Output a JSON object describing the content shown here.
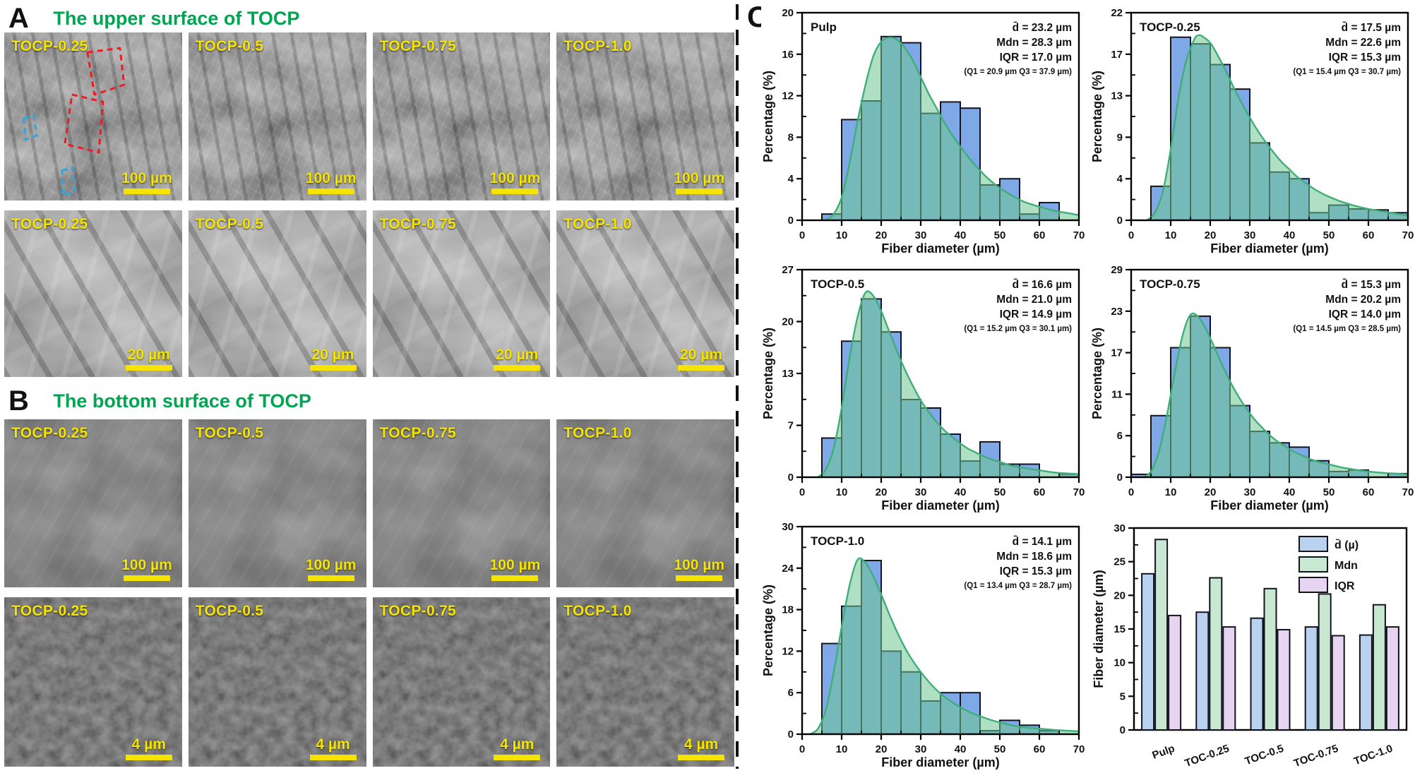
{
  "panels": {
    "a": {
      "letter": "A",
      "title": "The upper surface of TOCP",
      "rows": [
        {
          "scale_label": "100 µm",
          "texture": "texA1",
          "overlay": "ovA1",
          "annotated_first_tile": true,
          "tiles": [
            "TOCP-0.25",
            "TOCP-0.5",
            "TOCP-0.75",
            "TOCP-1.0"
          ]
        },
        {
          "scale_label": "20 µm",
          "texture": "texA2",
          "overlay": "ovA2",
          "annotated_first_tile": false,
          "tiles": [
            "TOCP-0.25",
            "TOCP-0.5",
            "TOCP-0.75",
            "TOCP-1.0"
          ]
        }
      ]
    },
    "b": {
      "letter": "B",
      "title": "The bottom surface of TOCP",
      "rows": [
        {
          "scale_label": "100 µm",
          "texture": "texB1",
          "overlay": "ovB1",
          "annotated_first_tile": false,
          "tiles": [
            "TOCP-0.25",
            "TOCP-0.5",
            "TOCP-0.75",
            "TOCP-1.0"
          ]
        },
        {
          "scale_label": "4 µm",
          "texture": "texB2",
          "overlay": "ovB2",
          "annotated_first_tile": false,
          "tiles": [
            "TOCP-0.25",
            "TOCP-0.5",
            "TOCP-0.75",
            "TOCP-1.0"
          ]
        }
      ]
    },
    "c": {
      "letter": "C"
    }
  },
  "colors": {
    "accent_green_title": "#00a551",
    "sem_label_yellow": "#f5e400",
    "hist_bar_fill": "#7fa8e6",
    "hist_bar_stroke": "#14141e",
    "curve_line": "#3fae7a",
    "curve_fill": "rgba(109,199,145,0.55)",
    "summary_bar_blue": "#b9d2f0",
    "summary_bar_green": "#c8e8d2",
    "summary_bar_purple": "#e6d4f0",
    "annotation_red": "#ed1c24",
    "annotation_blue": "#2aa7e0"
  },
  "chart_data": [
    {
      "type": "bar",
      "subtype": "histogram",
      "label": "Pulp",
      "xlabel": "Fiber diameter (µm)",
      "ylabel": "Percentage (%)",
      "xlim": [
        0,
        70
      ],
      "xticks": [
        0,
        10,
        20,
        30,
        40,
        50,
        60,
        70
      ],
      "ylim": [
        0,
        20
      ],
      "yticks": [
        0,
        4,
        8,
        12,
        16,
        20
      ],
      "bin_width": 5,
      "bin_start": 5,
      "bin_percentages": [
        0.6,
        9.7,
        11.5,
        17.7,
        17.1,
        10.3,
        11.4,
        10.8,
        3.4,
        4.0,
        0.6,
        1.7
      ],
      "fit_curve": [
        [
          6,
          0
        ],
        [
          8,
          0.6
        ],
        [
          10,
          2.2
        ],
        [
          12,
          5.5
        ],
        [
          14,
          9.5
        ],
        [
          16,
          13
        ],
        [
          18,
          15.8
        ],
        [
          20,
          17.2
        ],
        [
          22,
          17.6
        ],
        [
          24,
          17.4
        ],
        [
          26,
          16.6
        ],
        [
          28,
          15.4
        ],
        [
          30,
          13.8
        ],
        [
          32,
          12.2
        ],
        [
          34,
          10.8
        ],
        [
          36,
          9.4
        ],
        [
          38,
          8.2
        ],
        [
          40,
          7.1
        ],
        [
          42,
          6.1
        ],
        [
          44,
          5.2
        ],
        [
          46,
          4.4
        ],
        [
          48,
          3.7
        ],
        [
          50,
          3.1
        ],
        [
          53,
          2.4
        ],
        [
          56,
          1.8
        ],
        [
          60,
          1.3
        ],
        [
          64,
          0.9
        ],
        [
          67,
          0.7
        ],
        [
          70,
          0.5
        ]
      ],
      "stats": {
        "mean": "d̄ = 23.2 µm",
        "median": "Mdn = 28.3 µm",
        "iqr": "IQR = 17.0 µm",
        "quartiles": "(Q1 = 20.9 µm Q3 = 37.9 µm)"
      }
    },
    {
      "type": "bar",
      "subtype": "histogram",
      "label": "TOCP-0.25",
      "xlabel": "Fiber diameter (µm)",
      "ylabel": "Percentage (%)",
      "xlim": [
        0,
        70
      ],
      "xticks": [
        0,
        10,
        20,
        30,
        40,
        50,
        60,
        70
      ],
      "ylim": [
        0,
        22
      ],
      "yticks": [
        0,
        4,
        9,
        13,
        17,
        22
      ],
      "bin_width": 5,
      "bin_start": 5,
      "bin_percentages": [
        3.6,
        19.4,
        18.7,
        16.5,
        13.9,
        8.2,
        5.1,
        4.4,
        0.8,
        1.6,
        1.2,
        1.1,
        0.8
      ],
      "fit_curve": [
        [
          4,
          0
        ],
        [
          6,
          0.8
        ],
        [
          8,
          3
        ],
        [
          10,
          7.5
        ],
        [
          12,
          13
        ],
        [
          14,
          17
        ],
        [
          16,
          19.2
        ],
        [
          17,
          19.6
        ],
        [
          18,
          19.5
        ],
        [
          20,
          18.8
        ],
        [
          22,
          17.4
        ],
        [
          24,
          15.8
        ],
        [
          26,
          14
        ],
        [
          28,
          12.4
        ],
        [
          30,
          10.9
        ],
        [
          32,
          9.5
        ],
        [
          34,
          8.3
        ],
        [
          36,
          7.2
        ],
        [
          38,
          6.2
        ],
        [
          40,
          5.4
        ],
        [
          42,
          4.6
        ],
        [
          44,
          4
        ],
        [
          46,
          3.4
        ],
        [
          48,
          2.9
        ],
        [
          50,
          2.5
        ],
        [
          53,
          2
        ],
        [
          56,
          1.6
        ],
        [
          60,
          1.2
        ],
        [
          64,
          0.9
        ],
        [
          67,
          0.7
        ],
        [
          70,
          0.5
        ]
      ],
      "stats": {
        "mean": "d̄ = 17.5 µm",
        "median": "Mdn = 22.6 µm",
        "iqr": "IQR = 15.3 µm",
        "quartiles": "(Q1 = 15.4 µm Q3 = 30.7 µm)"
      }
    },
    {
      "type": "bar",
      "subtype": "histogram",
      "label": "TOCP-0.5",
      "xlabel": "Fiber diameter (µm)",
      "ylabel": "Percentage (%)",
      "xlim": [
        0,
        70
      ],
      "xticks": [
        0,
        10,
        20,
        30,
        40,
        50,
        60,
        70
      ],
      "ylim": [
        0,
        27
      ],
      "yticks": [
        0,
        7,
        13,
        20,
        27
      ],
      "bin_width": 5,
      "bin_start": 5,
      "bin_percentages": [
        5.1,
        17.7,
        23.2,
        18.9,
        10.1,
        9.0,
        5.6,
        2.1,
        4.6,
        1.7,
        1.7,
        0,
        0.4
      ],
      "fit_curve": [
        [
          4,
          0
        ],
        [
          6,
          1
        ],
        [
          8,
          3.8
        ],
        [
          10,
          9
        ],
        [
          12,
          15.5
        ],
        [
          14,
          20.8
        ],
        [
          16,
          24
        ],
        [
          18,
          23.6
        ],
        [
          20,
          21.6
        ],
        [
          22,
          19
        ],
        [
          24,
          16.4
        ],
        [
          26,
          14
        ],
        [
          28,
          11.9
        ],
        [
          30,
          10
        ],
        [
          32,
          8.5
        ],
        [
          34,
          7.2
        ],
        [
          36,
          6.1
        ],
        [
          38,
          5.2
        ],
        [
          40,
          4.4
        ],
        [
          42,
          3.7
        ],
        [
          44,
          3.2
        ],
        [
          46,
          2.7
        ],
        [
          48,
          2.3
        ],
        [
          50,
          2
        ],
        [
          53,
          1.5
        ],
        [
          56,
          1.2
        ],
        [
          60,
          0.9
        ],
        [
          64,
          0.6
        ],
        [
          67,
          0.5
        ],
        [
          70,
          0.4
        ]
      ],
      "stats": {
        "mean": "d̄ = 16.6 µm",
        "median": "Mdn = 21.0 µm",
        "iqr": "IQR = 14.9 µm",
        "quartiles": "(Q1 = 15.2 µm Q3 = 30.1 µm)"
      }
    },
    {
      "type": "bar",
      "subtype": "histogram",
      "label": "TOCP-0.75",
      "xlabel": "Fiber diameter (µm)",
      "ylabel": "Percentage (%)",
      "xlim": [
        0,
        70
      ],
      "xticks": [
        0,
        10,
        20,
        30,
        40,
        50,
        60,
        70
      ],
      "ylim": [
        0,
        29
      ],
      "yticks": [
        0,
        6,
        11,
        17,
        23,
        29
      ],
      "bin_width": 5,
      "bin_start": 0,
      "bin_percentages": [
        0.4,
        8.6,
        18.1,
        22.5,
        18.1,
        10.0,
        6.4,
        4.8,
        4.2,
        2.3,
        0.8,
        1.0,
        0,
        0.5
      ],
      "fit_curve": [
        [
          3,
          0
        ],
        [
          5,
          0.8
        ],
        [
          7,
          3.5
        ],
        [
          9,
          8.5
        ],
        [
          11,
          14.5
        ],
        [
          13,
          19.8
        ],
        [
          15,
          22.7
        ],
        [
          17,
          22.4
        ],
        [
          19,
          20.6
        ],
        [
          21,
          18.2
        ],
        [
          23,
          15.7
        ],
        [
          25,
          13.4
        ],
        [
          27,
          11.4
        ],
        [
          29,
          9.7
        ],
        [
          31,
          8.2
        ],
        [
          33,
          7
        ],
        [
          35,
          5.9
        ],
        [
          37,
          5
        ],
        [
          39,
          4.3
        ],
        [
          41,
          3.6
        ],
        [
          43,
          3.1
        ],
        [
          45,
          2.6
        ],
        [
          47,
          2.2
        ],
        [
          50,
          1.8
        ],
        [
          53,
          1.4
        ],
        [
          56,
          1.1
        ],
        [
          60,
          0.8
        ],
        [
          64,
          0.6
        ],
        [
          67,
          0.5
        ],
        [
          70,
          0.4
        ]
      ],
      "stats": {
        "mean": "d̄ = 15.3 µm",
        "median": "Mdn = 20.2 µm",
        "iqr": "IQR = 14.0 µm",
        "quartiles": "(Q1 = 14.5 µm Q3 = 28.5 µm)"
      }
    },
    {
      "type": "bar",
      "subtype": "histogram",
      "label": "TOCP-1.0",
      "xlabel": "Fiber diameter (µm)",
      "ylabel": "Percentage (%)",
      "xlim": [
        0,
        70
      ],
      "xticks": [
        0,
        10,
        20,
        30,
        40,
        50,
        60,
        70
      ],
      "ylim": [
        0,
        30
      ],
      "yticks": [
        0,
        6,
        12,
        18,
        24,
        30
      ],
      "bin_width": 5,
      "bin_start": 5,
      "bin_percentages": [
        13.1,
        18.5,
        25.1,
        12.0,
        9.0,
        4.8,
        6.0,
        6.0,
        0.5,
        2.0,
        1.3,
        0.5,
        0
      ],
      "fit_curve": [
        [
          2,
          0
        ],
        [
          4,
          0.8
        ],
        [
          6,
          3.5
        ],
        [
          8,
          9
        ],
        [
          10,
          15.5
        ],
        [
          12,
          21.5
        ],
        [
          14,
          25.2
        ],
        [
          16,
          24.8
        ],
        [
          18,
          22.8
        ],
        [
          20,
          20.2
        ],
        [
          22,
          17.4
        ],
        [
          24,
          14.8
        ],
        [
          26,
          12.5
        ],
        [
          28,
          10.6
        ],
        [
          30,
          9
        ],
        [
          32,
          7.6
        ],
        [
          34,
          6.4
        ],
        [
          36,
          5.4
        ],
        [
          38,
          4.6
        ],
        [
          40,
          3.9
        ],
        [
          42,
          3.3
        ],
        [
          44,
          2.8
        ],
        [
          46,
          2.4
        ],
        [
          48,
          2
        ],
        [
          50,
          1.7
        ],
        [
          53,
          1.3
        ],
        [
          56,
          1
        ],
        [
          60,
          0.8
        ],
        [
          64,
          0.6
        ],
        [
          67,
          0.5
        ],
        [
          70,
          0.4
        ]
      ],
      "stats": {
        "mean": "d̄ = 14.1 µm",
        "median": "Mdn = 18.6 µm",
        "iqr": "IQR = 15.3 µm",
        "quartiles": "(Q1 = 13.4 µm Q3 = 28.7 µm)"
      }
    },
    {
      "type": "bar",
      "subtype": "grouped-summary",
      "categories": [
        "Pulp",
        "TOC-0.25",
        "TOC-0.5",
        "TOC-0.75",
        "TOC-1.0"
      ],
      "series": [
        {
          "name": "d̄ (µ)",
          "color_key": "summary_bar_blue",
          "values": [
            23.2,
            17.5,
            16.6,
            15.3,
            14.1
          ]
        },
        {
          "name": "Mdn",
          "color_key": "summary_bar_green",
          "values": [
            28.3,
            22.6,
            21.0,
            20.2,
            18.6
          ]
        },
        {
          "name": "IQR",
          "color_key": "summary_bar_purple",
          "values": [
            17.0,
            15.3,
            14.9,
            14.0,
            15.3
          ]
        }
      ],
      "ylabel": "Fiber diameter (µm)",
      "ylim": [
        0,
        30
      ],
      "yticks": [
        0,
        5,
        10,
        15,
        20,
        25,
        30
      ],
      "legend_position": "top-right",
      "grid": false
    }
  ]
}
